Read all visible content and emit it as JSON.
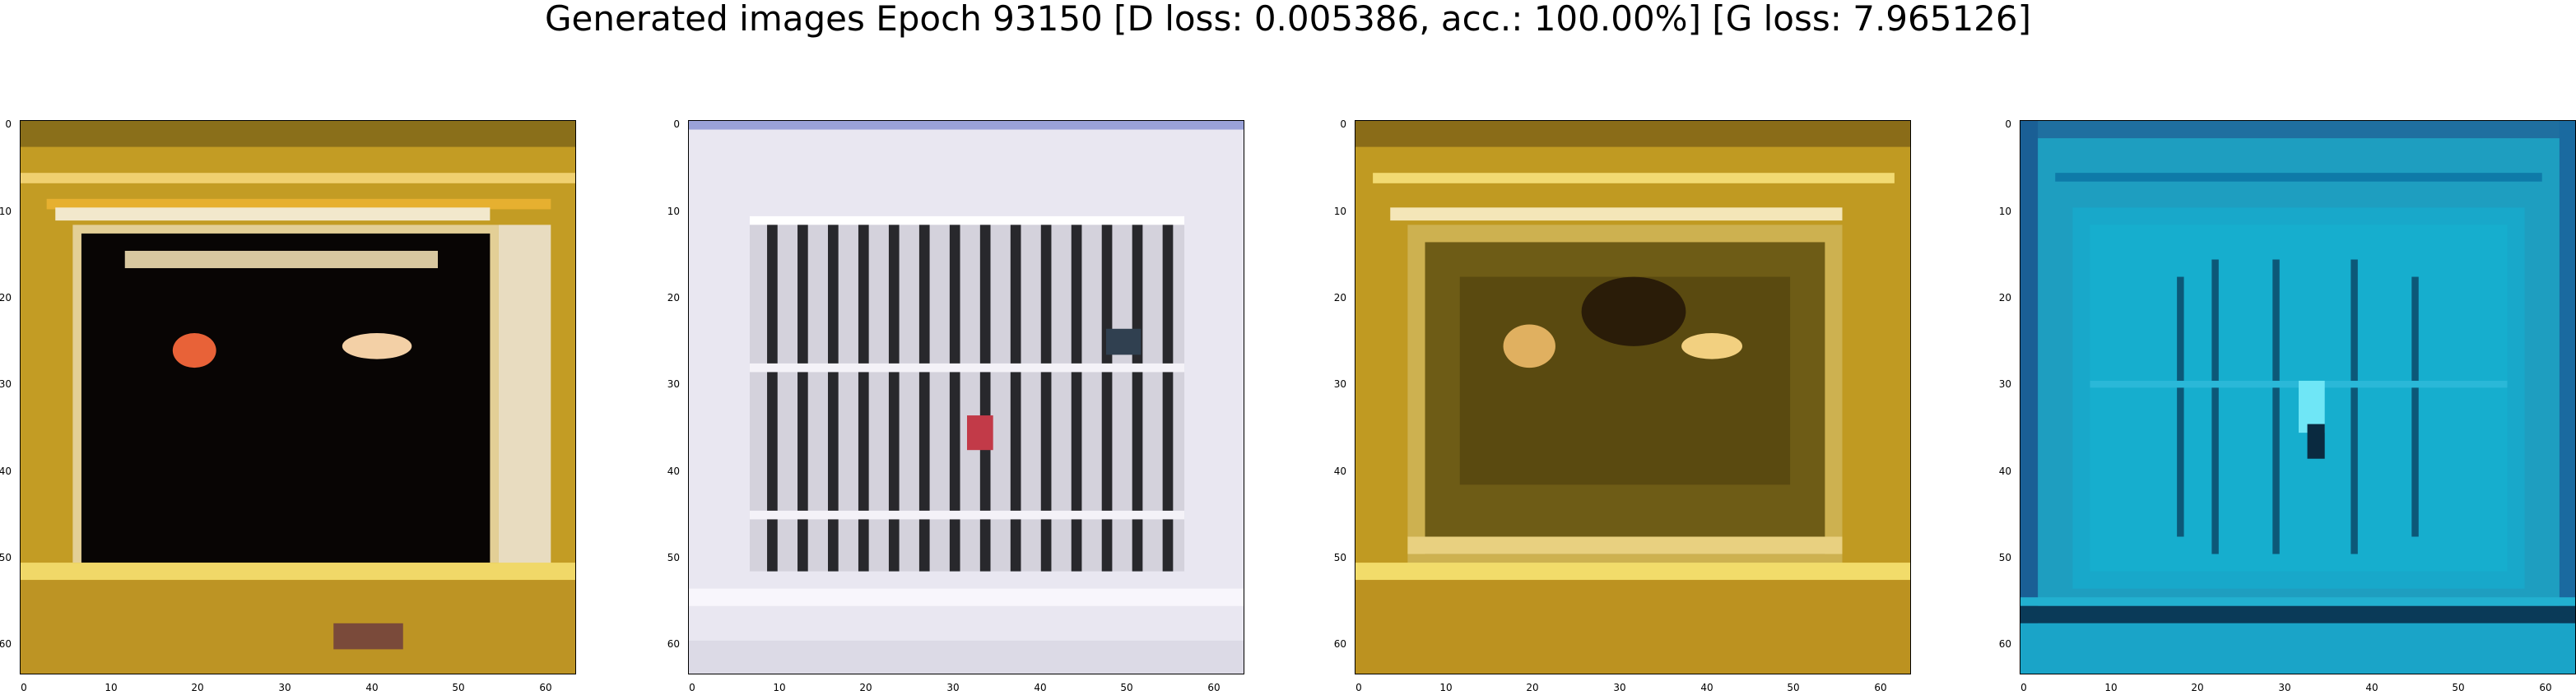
{
  "figure": {
    "title": "Generated images Epoch 93150 [D loss: 0.005386, acc.: 100.00%] [G loss: 7.965126]"
  },
  "axis_ticks": {
    "x": [
      "0",
      "10",
      "20",
      "30",
      "40",
      "50",
      "60"
    ],
    "y": [
      "0",
      "10",
      "20",
      "30",
      "40",
      "50",
      "60"
    ]
  },
  "images": [
    {
      "description_colors": {
        "outer": "#c09a22",
        "frame_light": "#e8d8a8",
        "inner": "#060403",
        "spot": "#e8603a"
      }
    },
    {
      "description_colors": {
        "outer": "#e8e6f0",
        "bars": "#2a2a2e",
        "accent": "#c33a4a"
      }
    },
    {
      "description_colors": {
        "outer": "#c09a22",
        "frame_light": "#e6d28e",
        "inner": "#6d5a14",
        "spot": "#f0c050"
      }
    },
    {
      "description_colors": {
        "outer": "#1f9fbf",
        "frame": "#0b6b98",
        "inner": "#1ab0d0",
        "dark": "#0a3a50"
      }
    }
  ]
}
